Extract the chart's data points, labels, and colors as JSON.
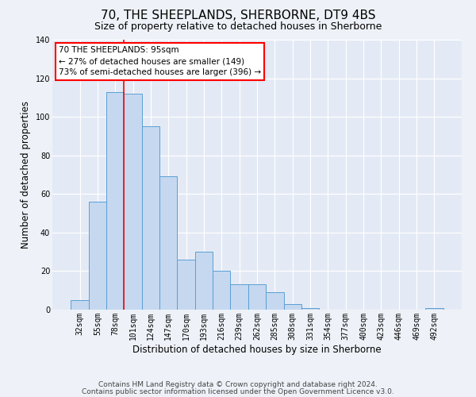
{
  "title": "70, THE SHEEPLANDS, SHERBORNE, DT9 4BS",
  "subtitle": "Size of property relative to detached houses in Sherborne",
  "xlabel": "Distribution of detached houses by size in Sherborne",
  "ylabel": "Number of detached properties",
  "categories": [
    "32sqm",
    "55sqm",
    "78sqm",
    "101sqm",
    "124sqm",
    "147sqm",
    "170sqm",
    "193sqm",
    "216sqm",
    "239sqm",
    "262sqm",
    "285sqm",
    "308sqm",
    "331sqm",
    "354sqm",
    "377sqm",
    "400sqm",
    "423sqm",
    "446sqm",
    "469sqm",
    "492sqm"
  ],
  "values": [
    5,
    56,
    113,
    112,
    95,
    69,
    26,
    30,
    20,
    13,
    13,
    9,
    3,
    1,
    0,
    0,
    0,
    0,
    0,
    0,
    1
  ],
  "bar_color": "#c5d8f0",
  "bar_edge_color": "#5a9fd4",
  "ylim": [
    0,
    140
  ],
  "yticks": [
    0,
    20,
    40,
    60,
    80,
    100,
    120,
    140
  ],
  "red_line_x": 2.5,
  "annotation_line1": "70 THE SHEEPLANDS: 95sqm",
  "annotation_line2": "← 27% of detached houses are smaller (149)",
  "annotation_line3": "73% of semi-detached houses are larger (396) →",
  "footer_line1": "Contains HM Land Registry data © Crown copyright and database right 2024.",
  "footer_line2": "Contains public sector information licensed under the Open Government Licence v3.0.",
  "background_color": "#eef2f8",
  "plot_bg_color": "#e4eaf5",
  "grid_color": "#ffffff",
  "title_fontsize": 11,
  "subtitle_fontsize": 9,
  "axis_label_fontsize": 8.5,
  "tick_fontsize": 7,
  "footer_fontsize": 6.5
}
